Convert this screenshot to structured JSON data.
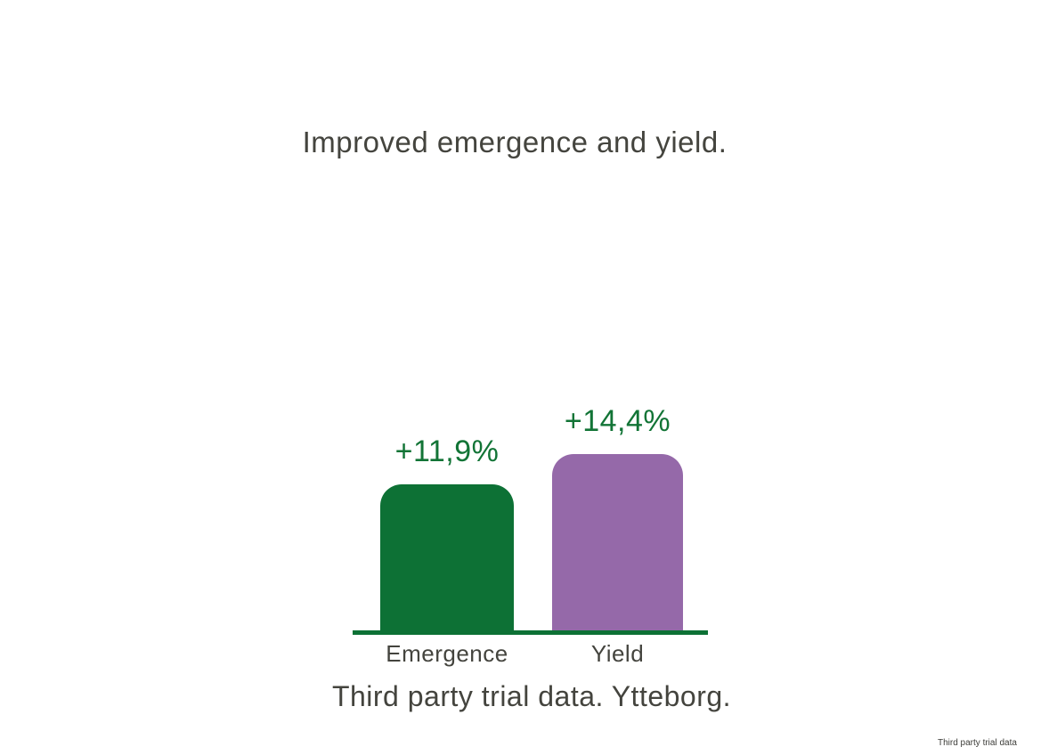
{
  "title": "Improved emergence and yield.",
  "caption": "Third party trial data. Ytteborg.",
  "footer_note": "Third party trial data",
  "colors": {
    "green": "#0D7135",
    "purple": "#9569A9",
    "value_text": "#127436",
    "text": "#44443E",
    "background": "#FFFFFF"
  },
  "chart_data": {
    "type": "bar",
    "categories": [
      "Emergence",
      "Yield"
    ],
    "values": [
      11.9,
      14.4
    ],
    "value_labels": [
      "+11,9%",
      "+14,4%"
    ],
    "series_colors": [
      "#0D7135",
      "#9569A9"
    ],
    "title": "Improved emergence and yield.",
    "subtitle": "Third party trial data. Ytteborg.",
    "xlabel": "",
    "ylabel": "",
    "ylim": [
      0,
      16
    ],
    "grid": false,
    "legend": "none",
    "baseline_color": "#0D7135",
    "bar_corner_rounding": "top"
  }
}
